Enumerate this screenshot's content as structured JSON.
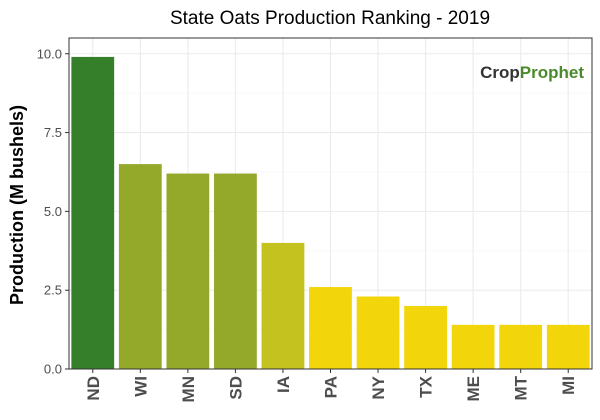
{
  "chart_data": {
    "type": "bar",
    "title": "State Oats Production Ranking - 2019",
    "xlabel": "",
    "ylabel": "Production (M bushels)",
    "ylim": [
      0,
      10.5
    ],
    "yticks": [
      "0.0",
      "2.5",
      "5.0",
      "7.5",
      "10.0"
    ],
    "ytick_values": [
      0,
      2.5,
      5,
      7.5,
      10
    ],
    "categories": [
      "ND",
      "WI",
      "MN",
      "SD",
      "IA",
      "PA",
      "NY",
      "TX",
      "ME",
      "MT",
      "MI"
    ],
    "values": [
      9.9,
      6.5,
      6.2,
      6.2,
      4.0,
      2.6,
      2.3,
      2.0,
      1.4,
      1.4,
      1.4
    ],
    "bar_colors": [
      "#367f2a",
      "#94a82a",
      "#94a82a",
      "#94a82a",
      "#c4c21e",
      "#f3d50c",
      "#f3d50c",
      "#f3d50c",
      "#f3d50c",
      "#f3d50c",
      "#f3d50c"
    ],
    "grid": true
  },
  "logo": {
    "part1": "Crop",
    "part2": "Prophet",
    "color1": "#333333",
    "color2": "#4a8a2a"
  },
  "colors": {
    "panel_border": "#333333",
    "grid_major": "#ebebeb",
    "grid_minor": "#f5f5f5"
  }
}
